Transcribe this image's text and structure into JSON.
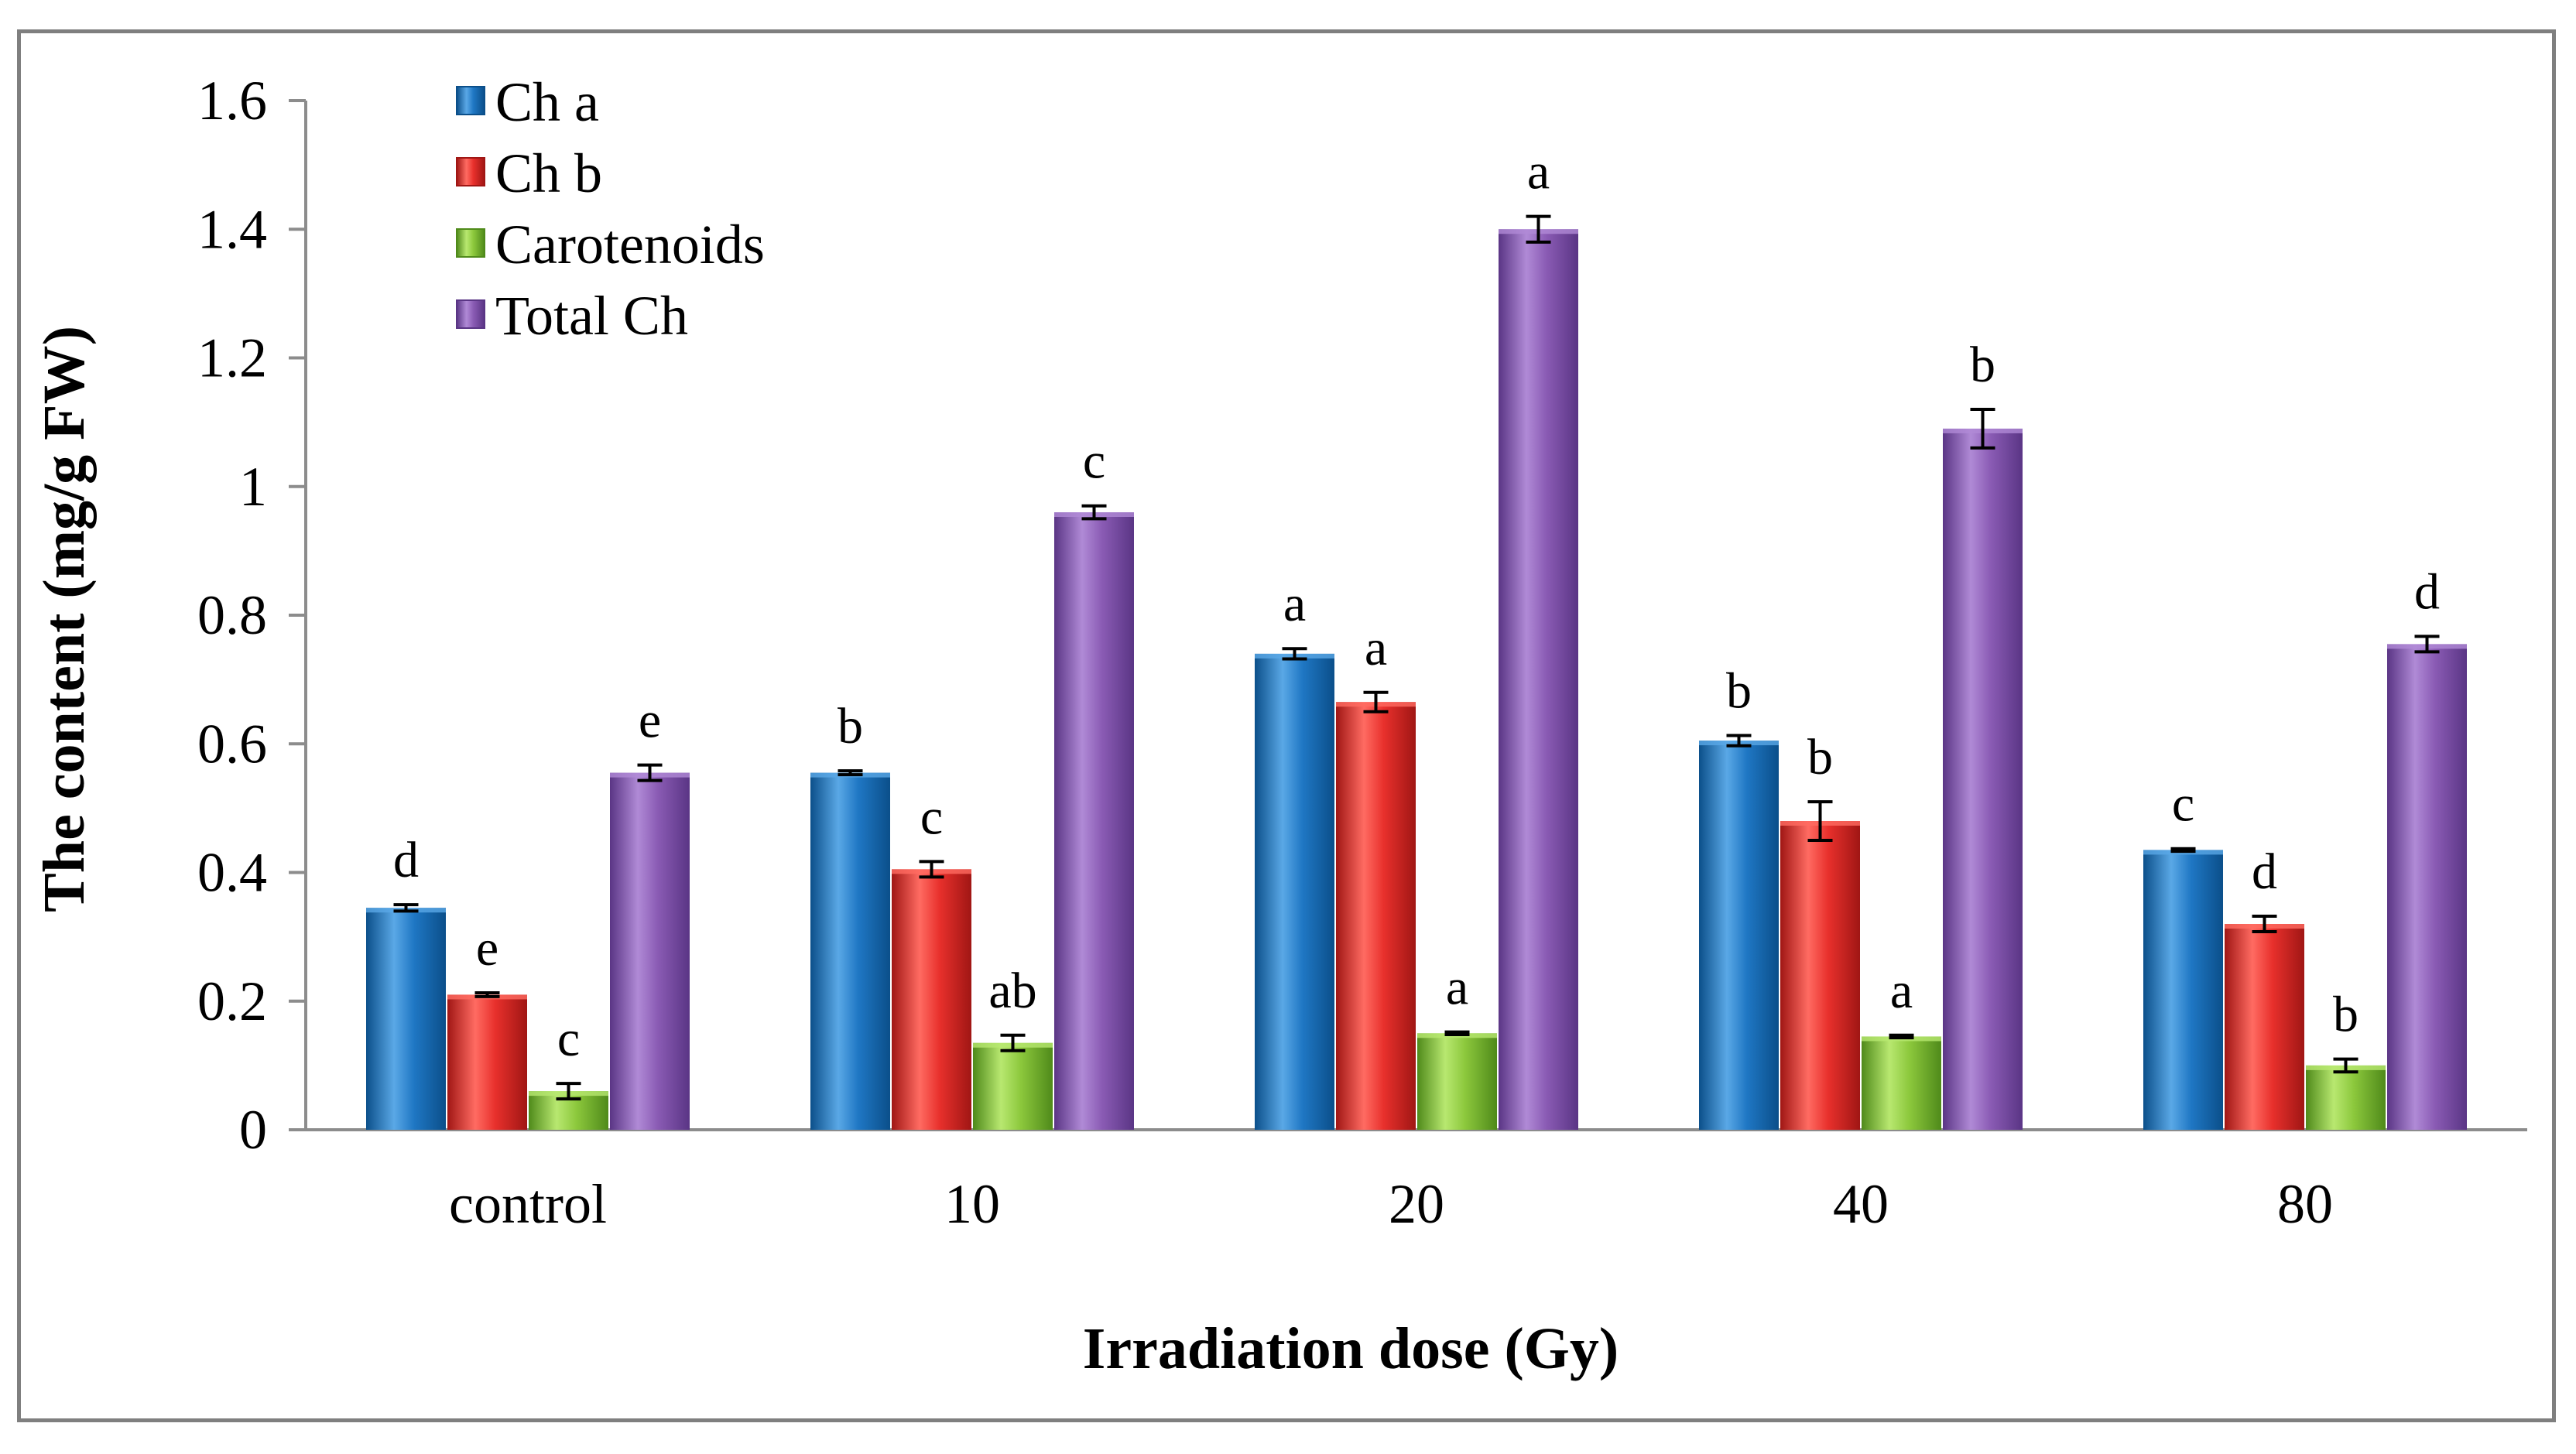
{
  "chart_data": {
    "type": "bar",
    "title": "",
    "xlabel": "Irradiation  dose (Gy)",
    "ylabel": "The content (mg/g FW)",
    "ylim": [
      0,
      1.6
    ],
    "yticks": [
      "0",
      "0.2",
      "0.4",
      "0.6",
      "0.8",
      "1",
      "1.2",
      "1.4",
      "1.6"
    ],
    "ytick_values": [
      0,
      0.2,
      0.4,
      0.6,
      0.8,
      1.0,
      1.2,
      1.4,
      1.6
    ],
    "grid": false,
    "legend_position": "top-left",
    "categories": [
      "control",
      "10",
      "20",
      "40",
      "80"
    ],
    "series": [
      {
        "name": "Ch a",
        "color": "#1f77c4",
        "dark": "#0b4f8a",
        "light": "#5aa8e6",
        "values": [
          0.345,
          0.555,
          0.74,
          0.605,
          0.435
        ],
        "errors": [
          0.005,
          0.003,
          0.008,
          0.008,
          0.002
        ],
        "letters": [
          "d",
          "b",
          "a",
          "b",
          "c"
        ]
      },
      {
        "name": "Ch b",
        "color": "#e8302c",
        "dark": "#a01614",
        "light": "#ff6b62",
        "values": [
          0.21,
          0.405,
          0.665,
          0.48,
          0.32
        ],
        "errors": [
          0.003,
          0.012,
          0.015,
          0.03,
          0.012
        ],
        "letters": [
          "e",
          "c",
          "a",
          "b",
          "d"
        ]
      },
      {
        "name": "Carotenoids",
        "color": "#8cc83c",
        "dark": "#4f8a1a",
        "light": "#b8e870",
        "values": [
          0.06,
          0.135,
          0.15,
          0.145,
          0.1
        ],
        "errors": [
          0.012,
          0.012,
          0.002,
          0.002,
          0.01
        ],
        "letters": [
          "c",
          "ab",
          "a",
          "a",
          "b"
        ]
      },
      {
        "name": "Total Ch",
        "color": "#8a5bb4",
        "dark": "#5a3585",
        "light": "#b08ad6",
        "values": [
          0.555,
          0.96,
          1.4,
          1.09,
          0.755
        ],
        "errors": [
          0.012,
          0.01,
          0.02,
          0.03,
          0.012
        ],
        "letters": [
          "e",
          "c",
          "a",
          "b",
          "d"
        ]
      }
    ]
  }
}
